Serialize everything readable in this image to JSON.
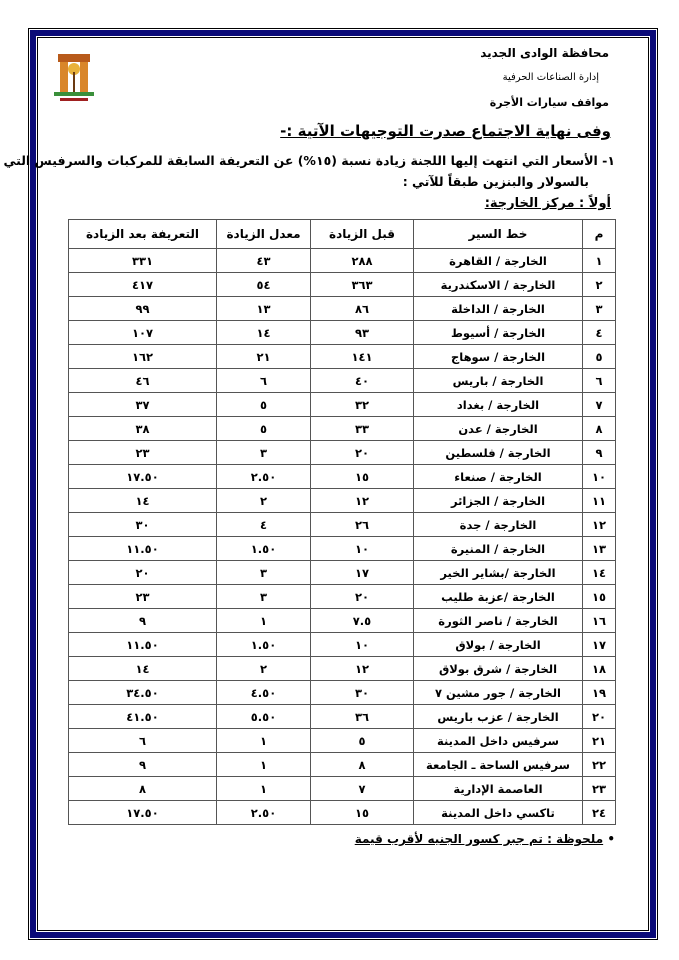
{
  "header": {
    "governorate": "محافظة الوادى الجديد",
    "department": "إدارة الصناعات الحرفية",
    "section": "مواقف سيارات الأجرة"
  },
  "title": "وفى نهاية الاجتماع صدرت  التوجيهات الآتية :-",
  "paragraph": {
    "line1": "١- الأسعار التي انتهت إليها اللجنة زيادة نسبة (١٥%) عن التعريفة السابقة للمركبات والسرفيس التي تعمل",
    "line2": "بالسولار والبنزين طبقاً للآتي :"
  },
  "subtitle": "أولاً :  مركز الخارجة:",
  "table": {
    "headers": [
      "م",
      "خط السير",
      "قبل الزيادة",
      "معدل الزيادة",
      "التعريفة بعد الزيادة"
    ],
    "rows": [
      [
        "١",
        "الخارجة / القاهرة",
        "٢٨٨",
        "٤٣",
        "٣٣١"
      ],
      [
        "٢",
        "الخارجة / الاسكندرية",
        "٣٦٣",
        "٥٤",
        "٤١٧"
      ],
      [
        "٣",
        "الخارجة / الداخلة",
        "٨٦",
        "١٣",
        "٩٩"
      ],
      [
        "٤",
        "الخارجة / أسيوط",
        "٩٣",
        "١٤",
        "١٠٧"
      ],
      [
        "٥",
        "الخارجة / سوهاج",
        "١٤١",
        "٢١",
        "١٦٢"
      ],
      [
        "٦",
        "الخارجة / باريس",
        "٤٠",
        "٦",
        "٤٦"
      ],
      [
        "٧",
        "الخارجة / بغداد",
        "٣٢",
        "٥",
        "٣٧"
      ],
      [
        "٨",
        "الخارجة / عدن",
        "٣٣",
        "٥",
        "٣٨"
      ],
      [
        "٩",
        "الخارجة / فلسطين",
        "٢٠",
        "٣",
        "٢٣"
      ],
      [
        "١٠",
        "الخارجة / صنعاء",
        "١٥",
        "٢.٥٠",
        "١٧.٥٠"
      ],
      [
        "١١",
        "الخارجة / الجزائر",
        "١٢",
        "٢",
        "١٤"
      ],
      [
        "١٢",
        "الخارجة / جدة",
        "٢٦",
        "٤",
        "٣٠"
      ],
      [
        "١٣",
        "الخارجة / المنيرة",
        "١٠",
        "١.٥٠",
        "١١.٥٠"
      ],
      [
        "١٤",
        "الخارجة /بشاير الخير",
        "١٧",
        "٣",
        "٢٠"
      ],
      [
        "١٥",
        "الخارجة /عزبة طليب",
        "٢٠",
        "٣",
        "٢٣"
      ],
      [
        "١٦",
        "الخارجة / ناصر الثورة",
        "٧.٥",
        "١",
        "٩"
      ],
      [
        "١٧",
        "الخارجة / بولاق",
        "١٠",
        "١.٥٠",
        "١١.٥٠"
      ],
      [
        "١٨",
        "الخارجة / شرق بولاق",
        "١٢",
        "٢",
        "١٤"
      ],
      [
        "١٩",
        "الخارجة / جور مشين ٧",
        "٣٠",
        "٤.٥٠",
        "٣٤.٥٠"
      ],
      [
        "٢٠",
        "الخارجة / عزب باريس",
        "٣٦",
        "٥.٥٠",
        "٤١.٥٠"
      ],
      [
        "٢١",
        "سرفيس داخل المدينة",
        "٥",
        "١",
        "٦"
      ],
      [
        "٢٢",
        "سرفيس الساحة ـ الجامعة",
        "٨",
        "١",
        "٩"
      ],
      [
        "٢٣",
        "العاصمة الإدارية",
        "٧",
        "١",
        "٨"
      ],
      [
        "٢٤",
        "تاكسي داخل المدينة",
        "١٥",
        "٢.٥٠",
        "١٧.٥٠"
      ]
    ]
  },
  "note": "ملحوظة : تم جبر كسور الجنيه لأقرب قيمة",
  "colors": {
    "frame": "#0a0a78"
  }
}
